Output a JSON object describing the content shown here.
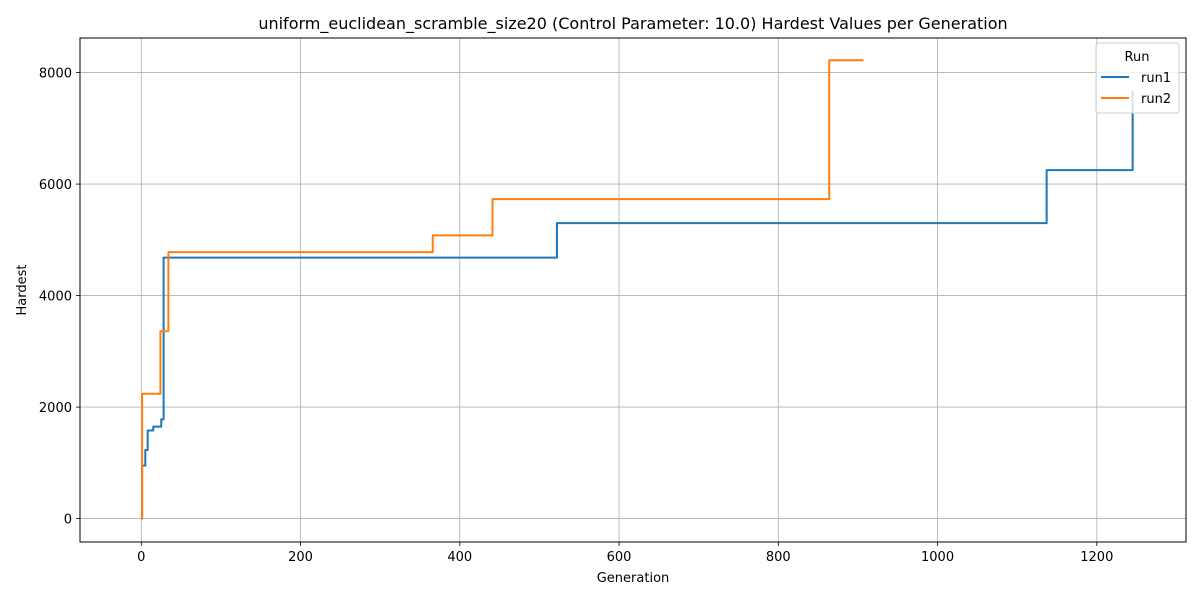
{
  "chart_data": {
    "type": "line",
    "title": "uniform_euclidean_scramble_size20 (Control Parameter: 10.0) Hardest Values per Generation",
    "xlabel": "Generation",
    "ylabel": "Hardest",
    "xlim": [
      -77,
      1312
    ],
    "ylim": [
      -420,
      8620
    ],
    "xticks": [
      0,
      200,
      400,
      600,
      800,
      1000,
      1200
    ],
    "yticks": [
      0,
      2000,
      4000,
      6000,
      8000
    ],
    "grid": true,
    "legend": {
      "title": "Run",
      "position": "top-right"
    },
    "series": [
      {
        "name": "run1",
        "color": "#1f77b4",
        "step": true,
        "points": [
          [
            0,
            0
          ],
          [
            1,
            950
          ],
          [
            5,
            1230
          ],
          [
            8,
            1580
          ],
          [
            15,
            1650
          ],
          [
            25,
            1780
          ],
          [
            28,
            4680
          ],
          [
            522,
            5300
          ],
          [
            1137,
            6250
          ],
          [
            1245,
            7680
          ]
        ]
      },
      {
        "name": "run2",
        "color": "#ff7f0e",
        "step": true,
        "points": [
          [
            0,
            0
          ],
          [
            1,
            2240
          ],
          [
            24,
            3360
          ],
          [
            34,
            4780
          ],
          [
            366,
            5080
          ],
          [
            441,
            5730
          ],
          [
            864,
            8220
          ],
          [
            907,
            8220
          ]
        ]
      }
    ]
  }
}
